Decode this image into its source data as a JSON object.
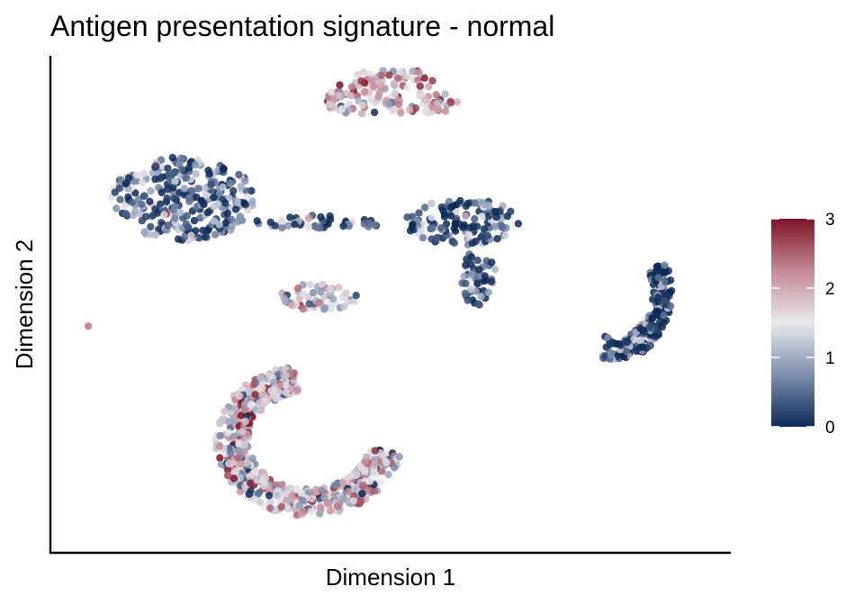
{
  "chart_data": {
    "type": "scatter",
    "title": "Antigen presentation signature - normal",
    "xlabel": "Dimension 1",
    "ylabel": "Dimension 2",
    "axis_ticks_shown": false,
    "grid": false,
    "legend": {
      "position": "right",
      "type": "colorbar",
      "ticks": [
        0,
        1,
        2,
        3
      ],
      "tick_labels": [
        "0",
        "1",
        "2",
        "3"
      ],
      "range": [
        0,
        3
      ],
      "colors": [
        "#0d2a57",
        "#7d8fae",
        "#e8e9ec",
        "#c48a96",
        "#7f1227"
      ]
    },
    "clusters": [
      {
        "name": "top-arc",
        "cx": 0.0,
        "cy": 4.5,
        "rx": 1.4,
        "ry": 0.5,
        "mean_score": 1.9
      },
      {
        "name": "upper-left-blob",
        "cx": -4.3,
        "cy": 2.5,
        "rx": 1.5,
        "ry": 0.9,
        "mean_score": 0.4
      },
      {
        "name": "bridge",
        "cx": -1.5,
        "cy": 2.0,
        "rx": 1.4,
        "ry": 0.15,
        "mean_score": 0.3
      },
      {
        "name": "right-central",
        "cx": 1.5,
        "cy": 2.0,
        "rx": 1.2,
        "ry": 0.5,
        "mean_score": 0.3
      },
      {
        "name": "right-central-tail",
        "cx": 1.8,
        "cy": 0.8,
        "rx": 0.4,
        "ry": 0.6,
        "mean_score": 0.4
      },
      {
        "name": "middle-small",
        "cx": -1.5,
        "cy": 0.4,
        "rx": 0.8,
        "ry": 0.3,
        "mean_score": 1.3
      },
      {
        "name": "lower-c",
        "cx": -2.0,
        "cy": -2.7,
        "rx": 2.0,
        "ry": 1.5,
        "mean_score": 1.6
      },
      {
        "name": "far-right-crescent",
        "cx": 5.5,
        "cy": 0.6,
        "rx": 0.9,
        "ry": 1.0,
        "mean_score": 0.1
      },
      {
        "name": "lone-point",
        "cx": -6.3,
        "cy": -0.2,
        "rx": 0.05,
        "ry": 0.05,
        "mean_score": 0.5
      }
    ],
    "xlim": [
      -7.0,
      7.0
    ],
    "ylim": [
      -5.0,
      5.5
    ]
  }
}
